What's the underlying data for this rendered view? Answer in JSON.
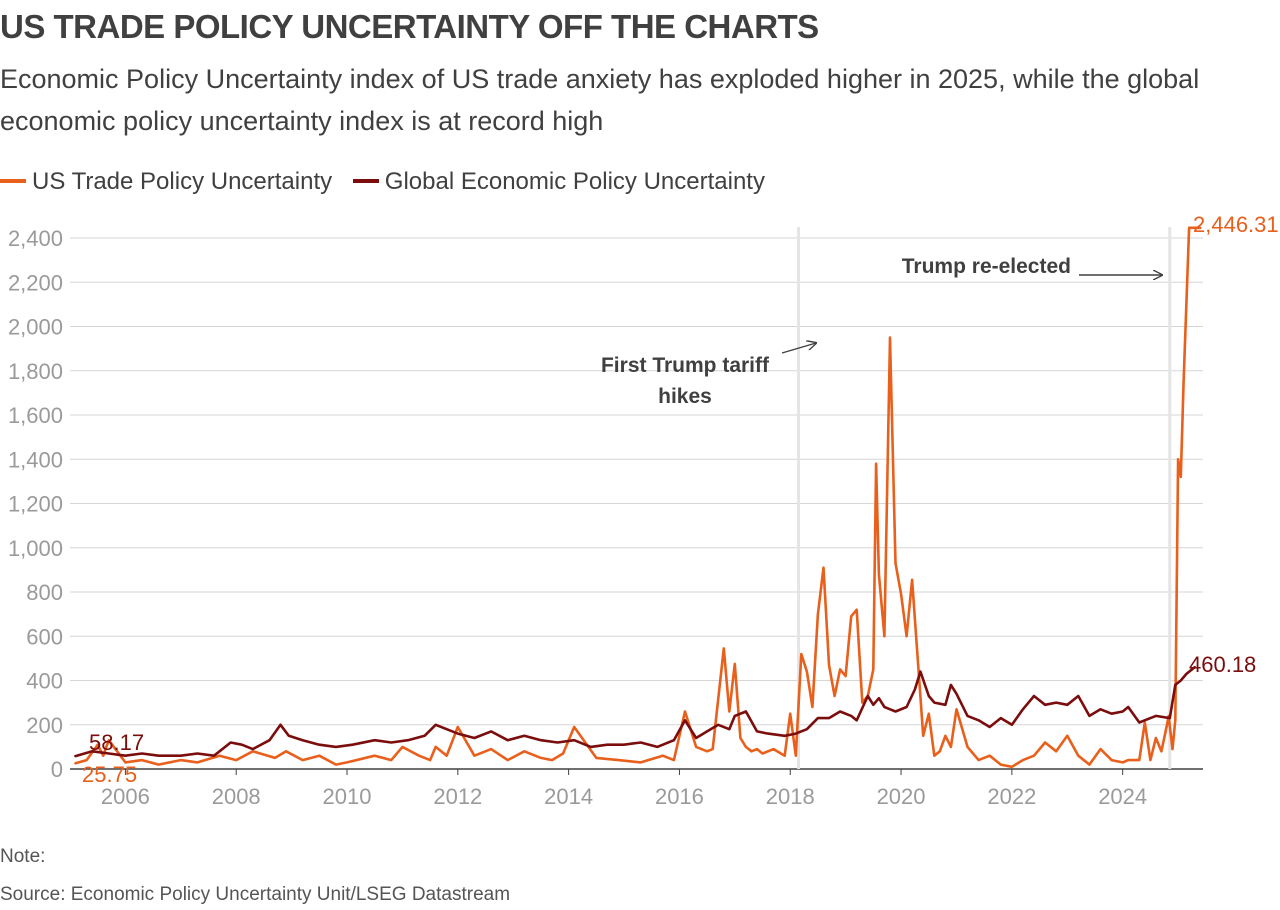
{
  "colors": {
    "us_trade": "#e8601c",
    "global": "#7b0d0d",
    "grid": "#d6d6d6",
    "axis": "#404040",
    "event_line": "#e4e4e4"
  },
  "chart_data": {
    "type": "line",
    "title": "US TRADE POLICY UNCERTAINTY OFF THE CHARTS",
    "subtitle": "Economic Policy Uncertainty index of US trade anxiety has exploded higher in 2025, while the global economic policy uncertainty index is at record high",
    "xlabel": "",
    "ylabel": "",
    "xlim": [
      2005.0,
      2025.45
    ],
    "ylim": [
      0,
      2400
    ],
    "y_ticks": [
      0,
      200,
      400,
      600,
      800,
      1000,
      1200,
      1400,
      1600,
      1800,
      2000,
      2200,
      2400
    ],
    "y_tick_labels": [
      "0",
      "200",
      "400",
      "600",
      "800",
      "1,000",
      "1,200",
      "1,400",
      "1,600",
      "1,800",
      "2,000",
      "2,200",
      "2,400"
    ],
    "x_ticks": [
      2006,
      2008,
      2010,
      2012,
      2014,
      2016,
      2018,
      2020,
      2022,
      2024
    ],
    "x_tick_labels": [
      "2006",
      "2008",
      "2010",
      "2012",
      "2014",
      "2016",
      "2018",
      "2020",
      "2022",
      "2024"
    ],
    "grid": "horizontal",
    "legend_position": "top-left",
    "series": [
      {
        "name": "US Trade Policy Uncertainty",
        "color": "#e8601c",
        "x": [
          2005.1,
          2005.3,
          2005.5,
          2005.6,
          2005.7,
          2006.0,
          2006.3,
          2006.6,
          2007.0,
          2007.3,
          2007.7,
          2008.0,
          2008.3,
          2008.7,
          2008.9,
          2009.2,
          2009.5,
          2009.8,
          2010.0,
          2010.5,
          2010.8,
          2011.0,
          2011.3,
          2011.5,
          2011.6,
          2011.8,
          2012.0,
          2012.3,
          2012.6,
          2012.9,
          2013.2,
          2013.5,
          2013.7,
          2013.9,
          2014.1,
          2014.5,
          2014.9,
          2015.3,
          2015.7,
          2015.9,
          2016.1,
          2016.3,
          2016.5,
          2016.6,
          2016.8,
          2016.9,
          2017.0,
          2017.1,
          2017.2,
          2017.3,
          2017.4,
          2017.5,
          2017.7,
          2017.9,
          2018.0,
          2018.1,
          2018.2,
          2018.3,
          2018.4,
          2018.5,
          2018.6,
          2018.7,
          2018.8,
          2018.9,
          2019.0,
          2019.1,
          2019.2,
          2019.3,
          2019.4,
          2019.5,
          2019.55,
          2019.6,
          2019.7,
          2019.8,
          2019.9,
          2020.0,
          2020.1,
          2020.2,
          2020.3,
          2020.4,
          2020.5,
          2020.6,
          2020.7,
          2020.8,
          2020.9,
          2021.0,
          2021.2,
          2021.4,
          2021.6,
          2021.8,
          2022.0,
          2022.2,
          2022.4,
          2022.6,
          2022.8,
          2023.0,
          2023.2,
          2023.4,
          2023.6,
          2023.8,
          2024.0,
          2024.1,
          2024.3,
          2024.4,
          2024.5,
          2024.6,
          2024.7,
          2024.8,
          2024.83,
          2024.9,
          2024.95,
          2025.0,
          2025.05,
          2025.1,
          2025.2,
          2025.3,
          2025.4
        ],
        "values": [
          25.75,
          40,
          110,
          60,
          130,
          30,
          40,
          20,
          40,
          30,
          60,
          40,
          80,
          50,
          80,
          40,
          60,
          20,
          30,
          60,
          40,
          100,
          60,
          40,
          100,
          60,
          190,
          60,
          90,
          40,
          80,
          50,
          40,
          70,
          190,
          50,
          40,
          30,
          60,
          40,
          260,
          100,
          80,
          90,
          545,
          260,
          475,
          140,
          100,
          80,
          90,
          70,
          90,
          60,
          250,
          60,
          520,
          440,
          280,
          700,
          910,
          470,
          330,
          450,
          420,
          690,
          720,
          300,
          330,
          450,
          1380,
          880,
          600,
          1950,
          930,
          790,
          600,
          855,
          500,
          150,
          250,
          60,
          80,
          150,
          100,
          270,
          100,
          40,
          60,
          20,
          10,
          40,
          60,
          120,
          80,
          150,
          60,
          20,
          90,
          40,
          30,
          40,
          40,
          210,
          40,
          140,
          80,
          200,
          240,
          90,
          220,
          1400,
          1320,
          1750,
          2446.31,
          2446.31,
          2446.31
        ]
      },
      {
        "name": "Global Economic Policy Uncertainty",
        "color": "#7b0d0d",
        "x": [
          2005.1,
          2005.4,
          2005.7,
          2006.0,
          2006.3,
          2006.6,
          2007.0,
          2007.3,
          2007.6,
          2007.9,
          2008.1,
          2008.3,
          2008.6,
          2008.8,
          2008.95,
          2009.2,
          2009.5,
          2009.8,
          2010.1,
          2010.5,
          2010.8,
          2011.1,
          2011.4,
          2011.6,
          2011.8,
          2012.0,
          2012.3,
          2012.6,
          2012.9,
          2013.2,
          2013.5,
          2013.8,
          2014.1,
          2014.4,
          2014.7,
          2015.0,
          2015.3,
          2015.6,
          2015.9,
          2016.1,
          2016.3,
          2016.5,
          2016.7,
          2016.9,
          2017.0,
          2017.2,
          2017.4,
          2017.6,
          2017.9,
          2018.1,
          2018.3,
          2018.5,
          2018.7,
          2018.9,
          2019.1,
          2019.2,
          2019.4,
          2019.5,
          2019.6,
          2019.7,
          2019.9,
          2020.1,
          2020.25,
          2020.35,
          2020.5,
          2020.6,
          2020.8,
          2020.9,
          2021.0,
          2021.2,
          2021.4,
          2021.6,
          2021.8,
          2022.0,
          2022.2,
          2022.4,
          2022.6,
          2022.8,
          2023.0,
          2023.2,
          2023.4,
          2023.6,
          2023.8,
          2024.0,
          2024.1,
          2024.3,
          2024.6,
          2024.85,
          2024.95,
          2025.05,
          2025.15,
          2025.3
        ],
        "values": [
          58.17,
          80,
          70,
          60,
          70,
          60,
          60,
          70,
          60,
          120,
          110,
          90,
          130,
          200,
          150,
          130,
          110,
          100,
          110,
          130,
          120,
          130,
          150,
          200,
          180,
          160,
          140,
          170,
          130,
          150,
          130,
          120,
          130,
          100,
          110,
          110,
          120,
          100,
          130,
          220,
          140,
          170,
          200,
          180,
          240,
          260,
          170,
          160,
          150,
          160,
          180,
          230,
          230,
          260,
          240,
          220,
          330,
          290,
          320,
          280,
          260,
          280,
          360,
          440,
          330,
          300,
          290,
          380,
          340,
          240,
          220,
          190,
          230,
          200,
          270,
          330,
          290,
          300,
          290,
          330,
          240,
          270,
          250,
          260,
          280,
          210,
          240,
          230,
          380,
          400,
          430,
          460.18
        ]
      }
    ],
    "end_labels": {
      "us_start": "25.75",
      "global_start": "58.17",
      "us_end": "2,446.31",
      "global_end": "460.18"
    },
    "event_lines": [
      {
        "x": 2018.15,
        "label_lines": [
          "First Trump tariff",
          "hikes"
        ]
      },
      {
        "x": 2024.85,
        "label_lines": [
          "Trump re-elected"
        ]
      }
    ]
  },
  "footer": {
    "note": "Note:",
    "source": "Source: Economic Policy Uncertainty Unit/LSEG Datastream"
  }
}
